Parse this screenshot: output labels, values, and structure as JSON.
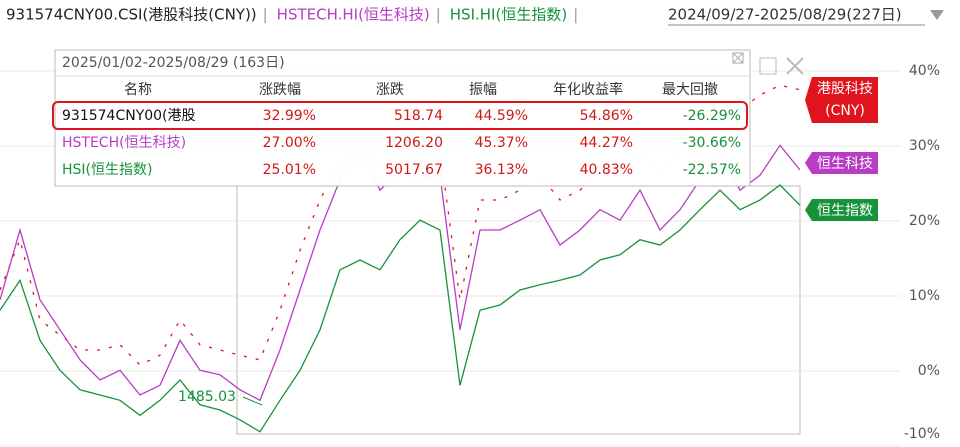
{
  "chart_data": {
    "type": "line",
    "header_range": "2024/09/27-2025/08/29(227日)",
    "ylim": [
      -10,
      44
    ],
    "yticks": [
      {
        "value": -10,
        "label": "-10%"
      },
      {
        "value": 0,
        "label": "0%"
      },
      {
        "value": 10,
        "label": "10%"
      },
      {
        "value": 20,
        "label": "20%"
      },
      {
        "value": 30,
        "label": "30%"
      },
      {
        "value": 40,
        "label": "40%"
      }
    ],
    "grid": true,
    "series": [
      {
        "name": "931574CNY00.CSI(港股科技(CNY))",
        "color": "#e0141e",
        "end_label": [
          "港股科技",
          "(CNY)"
        ],
        "values": [
          10.8,
          17.5,
          6.8,
          4.8,
          2.8,
          2.8,
          3.5,
          0.8,
          2.1,
          6.8,
          3.5,
          2.8,
          2.1,
          1.5,
          8.1,
          16.1,
          22.8,
          28.1,
          30.8,
          26.8,
          29.5,
          28.1,
          29.5,
          9.5,
          22.8,
          22.8,
          24.1,
          26.1,
          22.8,
          24.1,
          26.8,
          26.1,
          29.5,
          26.8,
          30.1,
          33.5,
          36.1,
          34.8,
          36.8,
          38.1,
          37.5
        ]
      },
      {
        "name": "HSTECH.HI(恒生科技)",
        "color": "#b83cc4",
        "end_label": [
          "恒生科技"
        ],
        "values": [
          9.5,
          18.8,
          9.5,
          5.5,
          1.5,
          -1.2,
          0.1,
          -3.2,
          -1.9,
          4.1,
          0.1,
          -0.5,
          -2.5,
          -3.9,
          2.8,
          10.8,
          18.8,
          25.5,
          29.5,
          24.1,
          26.8,
          25.5,
          26.1,
          5.5,
          18.8,
          18.8,
          20.1,
          21.5,
          16.8,
          18.8,
          21.5,
          20.1,
          24.1,
          18.8,
          21.5,
          25.5,
          29.5,
          24.1,
          26.1,
          30.1,
          26.8
        ]
      },
      {
        "name": "HSI.HI(恒生指数)",
        "color": "#16923a",
        "end_label": [
          "恒生指数"
        ],
        "values": [
          8.1,
          12.1,
          4.1,
          0.1,
          -2.5,
          -3.2,
          -3.9,
          -5.9,
          -3.9,
          -1.2,
          -4.5,
          -5.2,
          -6.5,
          -8.1,
          -3.9,
          0.1,
          5.5,
          13.5,
          14.8,
          13.5,
          17.5,
          20.1,
          18.8,
          -1.9,
          8.1,
          8.8,
          10.8,
          11.5,
          12.1,
          12.8,
          14.8,
          15.5,
          17.5,
          16.8,
          18.8,
          21.5,
          24.1,
          21.5,
          22.8,
          24.8,
          22.1
        ]
      }
    ],
    "annotations": [
      {
        "text": "1485.03"
      }
    ]
  },
  "table": {
    "title": "2025/01/02-2025/08/29 (163日)",
    "columns": [
      "名称",
      "涨跌幅",
      "涨跌",
      "振幅",
      "年化收益率",
      "最大回撤"
    ],
    "rows": [
      [
        "931574CNY00(港股",
        "32.99%",
        "518.74",
        "44.59%",
        "54.86%",
        "-26.29%"
      ],
      [
        "HSTECH(恒生科技)",
        "27.00%",
        "1206.20",
        "45.37%",
        "44.27%",
        "-30.66%"
      ],
      [
        "HSI(恒生指数)",
        "25.01%",
        "5017.67",
        "36.13%",
        "40.83%",
        "-22.57%"
      ]
    ]
  }
}
